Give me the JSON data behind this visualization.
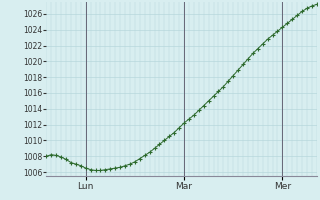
{
  "x_labels": [
    "Lun",
    "Mar",
    "Mer"
  ],
  "ylim": [
    1005.5,
    1027.5
  ],
  "yticks": [
    1006,
    1008,
    1010,
    1012,
    1014,
    1016,
    1018,
    1020,
    1022,
    1024,
    1026
  ],
  "background_color": "#d8eef0",
  "plot_bg_color": "#d8eef0",
  "grid_color": "#b8d8dc",
  "line_color": "#2d6a2d",
  "marker_color": "#2d6a2d",
  "pressure_values": [
    1008.0,
    1008.2,
    1008.1,
    1007.9,
    1007.6,
    1007.2,
    1007.0,
    1006.8,
    1006.5,
    1006.3,
    1006.2,
    1006.2,
    1006.3,
    1006.4,
    1006.5,
    1006.6,
    1006.8,
    1007.0,
    1007.3,
    1007.7,
    1008.1,
    1008.5,
    1009.0,
    1009.5,
    1010.0,
    1010.5,
    1011.0,
    1011.6,
    1012.2,
    1012.7,
    1013.2,
    1013.8,
    1014.4,
    1015.0,
    1015.6,
    1016.2,
    1016.8,
    1017.5,
    1018.2,
    1018.9,
    1019.6,
    1020.3,
    1021.0,
    1021.6,
    1022.2,
    1022.8,
    1023.3,
    1023.8,
    1024.3,
    1024.8,
    1025.3,
    1025.8,
    1026.3,
    1026.7,
    1027.0,
    1027.2
  ],
  "vline_color": "#666677",
  "vline_positions": [
    8,
    28,
    48
  ],
  "bottom_line_color": "#888899",
  "ytick_fontsize": 5.5,
  "xtick_fontsize": 6.5
}
